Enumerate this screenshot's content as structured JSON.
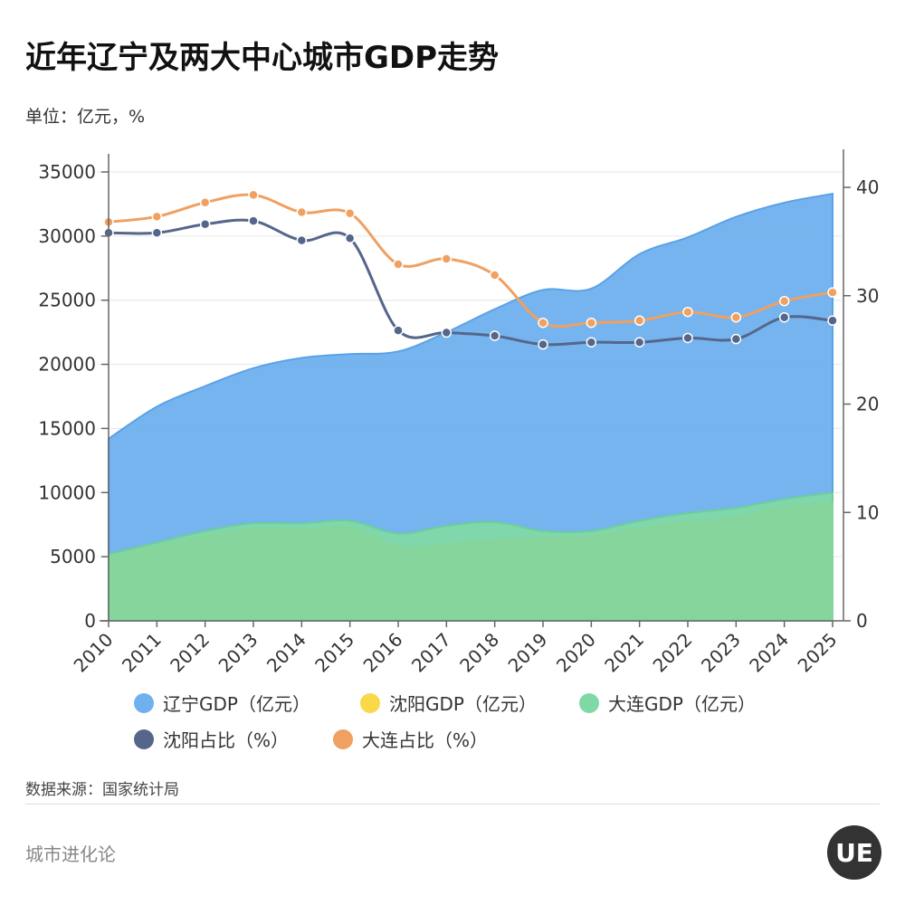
{
  "header": {
    "title": "近年辽宁及两大中心城市GDP走势",
    "unit": "单位：亿元，%"
  },
  "footer": {
    "source": "数据来源：国家统计局",
    "brand": "城市进化论",
    "logo_text": "UE"
  },
  "colors": {
    "liaoning": "#6fb0ee",
    "shenyang_gdp": "#f9d94a",
    "dalian_gdp": "#7fd9a6",
    "shenyang_share": "#55668a",
    "dalian_share": "#f0a060"
  },
  "chart_data": {
    "type": "area",
    "title": "近年辽宁及两大中心城市GDP走势",
    "x": [
      "2010",
      "2011",
      "2012",
      "2013",
      "2014",
      "2015",
      "2016",
      "2017",
      "2018",
      "2019",
      "2020",
      "2021",
      "2022",
      "2023",
      "2024",
      "2025"
    ],
    "y_left": {
      "ylim": [
        0,
        35000
      ],
      "ticks": [
        0,
        5000,
        10000,
        15000,
        20000,
        25000,
        30000,
        35000
      ]
    },
    "y_right": {
      "ylim": [
        0,
        40
      ],
      "ticks": [
        0,
        10,
        20,
        30,
        40
      ]
    },
    "grid": true,
    "legend_position": "bottom",
    "series": [
      {
        "name": "辽宁GDP（亿元）",
        "axis": "left",
        "kind": "area",
        "values": [
          14200,
          16700,
          18300,
          19700,
          20500,
          20800,
          21000,
          22500,
          24300,
          25800,
          25900,
          28600,
          29900,
          31500,
          32600,
          33300
        ]
      },
      {
        "name": "沈阳GDP（亿元）",
        "axis": "left",
        "kind": "area",
        "values": [
          5000,
          5900,
          6600,
          7200,
          7100,
          7300,
          5800,
          6000,
          6300,
          6500,
          6600,
          7200,
          7700,
          8100,
          8900,
          9200
        ]
      },
      {
        "name": "大连GDP（亿元）",
        "axis": "left",
        "kind": "area",
        "values": [
          5200,
          6100,
          7000,
          7600,
          7600,
          7800,
          6800,
          7400,
          7700,
          7000,
          7000,
          7800,
          8400,
          8800,
          9500,
          10000
        ]
      },
      {
        "name": "沈阳占比（%）",
        "axis": "right",
        "kind": "line",
        "values": [
          35.8,
          35.8,
          36.6,
          36.9,
          35.1,
          35.3,
          26.8,
          26.6,
          26.3,
          25.5,
          25.7,
          25.7,
          26.1,
          26.0,
          28.0,
          27.7
        ]
      },
      {
        "name": "大连占比（%）",
        "axis": "right",
        "kind": "line",
        "values": [
          36.8,
          37.3,
          38.6,
          39.3,
          37.7,
          37.6,
          32.9,
          33.4,
          31.9,
          27.5,
          27.5,
          27.7,
          28.5,
          28.0,
          29.5,
          30.3
        ]
      }
    ]
  }
}
